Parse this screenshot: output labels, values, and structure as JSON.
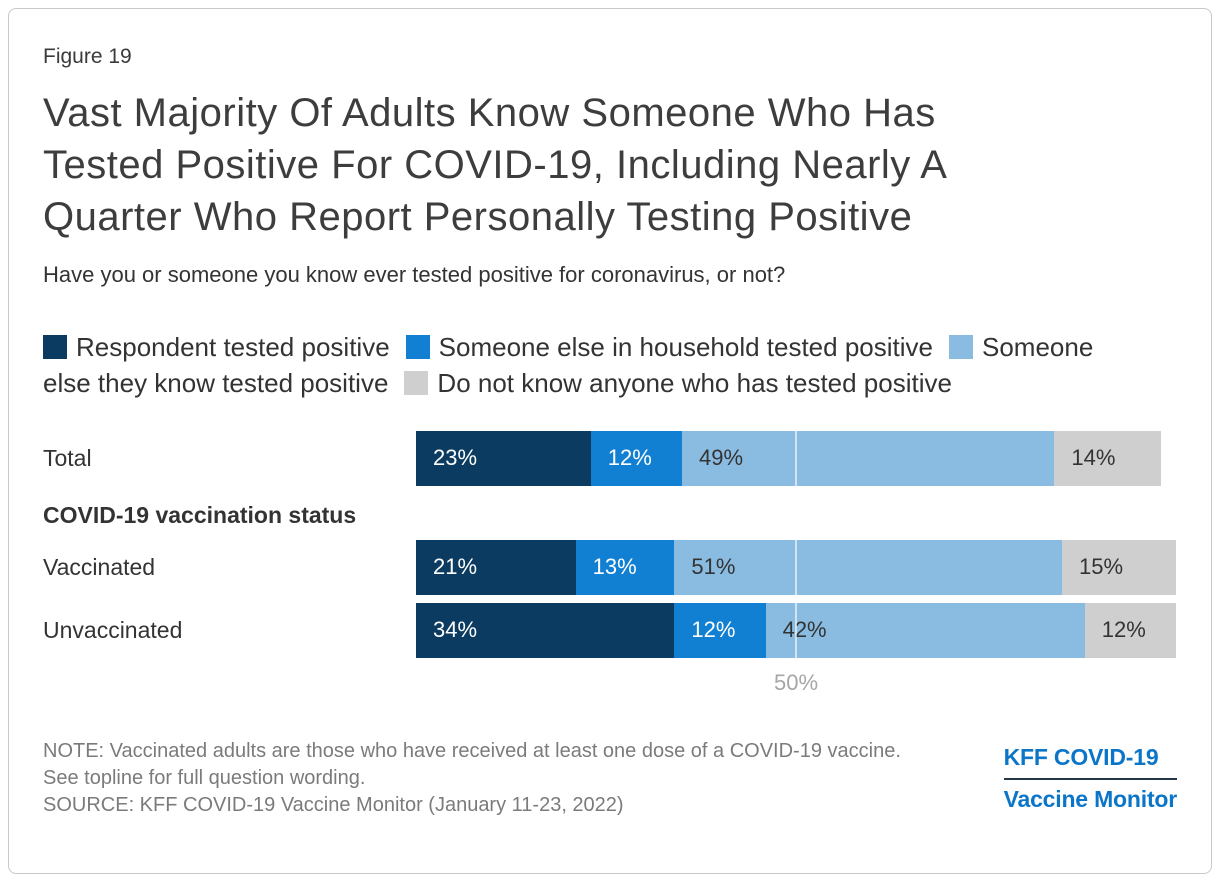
{
  "figure_label": "Figure 19",
  "title_lines": [
    "Vast Majority Of Adults Know Someone Who Has",
    "Tested Positive For COVID-19, Including Nearly A",
    "Quarter Who Report Personally Testing Positive"
  ],
  "subtitle": "Have you or someone you know ever tested positive for coronavirus, or not?",
  "legend": {
    "items": [
      {
        "label": "Respondent tested positive",
        "color": "#0b3b60"
      },
      {
        "label": "Someone else in household tested positive",
        "color": "#1280d2"
      },
      {
        "label": "Someone else they know tested positive",
        "color": "#8abce2"
      },
      {
        "label": "Do not know anyone who has tested positive",
        "color": "#cfcfcf"
      }
    ]
  },
  "chart_data": {
    "type": "bar",
    "stacked": true,
    "orientation": "horizontal",
    "categories": [
      "Total",
      "Vaccinated",
      "Unvaccinated"
    ],
    "section_header": "COVID-19 vaccination status",
    "series": [
      {
        "name": "Respondent tested positive",
        "color": "#0b3b60",
        "label_color": "#ffffff",
        "values": [
          23,
          21,
          34
        ]
      },
      {
        "name": "Someone else in household tested positive",
        "color": "#1280d2",
        "label_color": "#ffffff",
        "values": [
          12,
          13,
          12
        ]
      },
      {
        "name": "Someone else they know tested positive",
        "color": "#8abce2",
        "label_color": "#333333",
        "values": [
          49,
          51,
          42
        ]
      },
      {
        "name": "Do not know anyone who has tested positive",
        "color": "#cfcfcf",
        "label_color": "#333333",
        "values": [
          14,
          15,
          12
        ]
      }
    ],
    "value_suffix": "%",
    "axis": {
      "min": 0,
      "max": 100,
      "gridline_value": 50,
      "gridline_label": "50%"
    }
  },
  "note": "NOTE: Vaccinated adults are those who have received at least one dose of a COVID-19 vaccine. See topline for full question wording.",
  "source": "SOURCE: KFF COVID-19 Vaccine Monitor (January 11-23, 2022)",
  "logo": {
    "line1": "KFF COVID-19",
    "line2": "Vaccine Monitor"
  }
}
